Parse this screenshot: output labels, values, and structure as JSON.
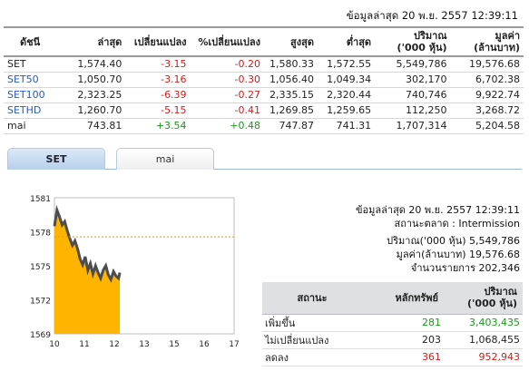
{
  "header": {
    "timestamp": "ข้อมูลล่าสุด 20 พ.ย. 2557 12:39:11"
  },
  "index_table": {
    "columns": [
      "ดัชนี",
      "ล่าสุด",
      "เปลี่ยนแปลง",
      "%เปลี่ยนแปลง",
      "สูงสุด",
      "ต่ำสุด",
      "ปริมาณ",
      "('000 หุ้น)",
      "มูลค่า",
      "(ล้านบาท)"
    ],
    "rows": [
      {
        "name": "SET",
        "last": "1,574.40",
        "change": "-3.15",
        "pct": "-0.20",
        "high": "1,580.33",
        "low": "1,572.55",
        "volume": "5,549,786",
        "value": "19,576.68"
      },
      {
        "name": "SET50",
        "last": "1,050.70",
        "change": "-3.16",
        "pct": "-0.30",
        "high": "1,056.40",
        "low": "1,049.34",
        "volume": "302,170",
        "value": "6,702.38"
      },
      {
        "name": "SET100",
        "last": "2,323.25",
        "change": "-6.39",
        "pct": "-0.27",
        "high": "2,335.15",
        "low": "2,320.44",
        "volume": "740,746",
        "value": "9,922.74"
      },
      {
        "name": "SETHD",
        "last": "1,260.70",
        "change": "-5.15",
        "pct": "-0.41",
        "high": "1,269.85",
        "low": "1,259.65",
        "volume": "112,250",
        "value": "3,268.72"
      },
      {
        "name": "mai",
        "last": "743.81",
        "change": "+3.54",
        "pct": "+0.48",
        "high": "747.87",
        "low": "741.31",
        "volume": "1,707,314",
        "value": "5,204.58"
      }
    ]
  },
  "tabs": [
    {
      "label": "SET",
      "active": true
    },
    {
      "label": "mai",
      "active": false
    }
  ],
  "chart_data": {
    "type": "area",
    "title": "",
    "xlabel": "",
    "ylabel": "",
    "x_ticks": [
      "10",
      "11",
      "12",
      "13",
      "15",
      "16",
      "17"
    ],
    "y_ticks": [
      "1581",
      "1578",
      "1575",
      "1572",
      "1569"
    ],
    "ylim": [
      1569,
      1581
    ],
    "xlim": [
      10,
      17
    ],
    "reference_line": 1577.55,
    "grid": false,
    "series": [
      {
        "x": [
          10.0,
          10.1,
          10.2,
          10.3,
          10.4,
          10.5,
          10.6,
          10.7,
          10.8,
          10.9,
          11.0,
          11.1,
          11.2,
          11.3,
          11.4,
          11.5,
          11.6,
          11.7,
          11.8,
          11.9,
          12.0,
          12.1,
          12.2,
          12.3,
          12.4,
          12.5,
          12.55
        ],
        "y": [
          1578.5,
          1579.9,
          1579.3,
          1578.6,
          1578.9,
          1578.1,
          1577.4,
          1576.8,
          1577.2,
          1576.5,
          1575.6,
          1575.1,
          1575.8,
          1574.6,
          1575.2,
          1574.3,
          1575.0,
          1574.4,
          1573.9,
          1574.6,
          1575.0,
          1574.2,
          1573.8,
          1574.5,
          1574.1,
          1573.9,
          1574.4
        ]
      }
    ],
    "colors": {
      "fill": "#ffb400",
      "line": "#4d4d4d",
      "ref": "#e0a000"
    }
  },
  "market_info": {
    "timestamp": "ข้อมูลล่าสุด 20 พ.ย. 2557 12:39:11",
    "status": "สถานะตลาด : Intermission",
    "volume": "ปริมาณ('000 หุ้น) 5,549,786",
    "value": "มูลค่า(ล้านบาท) 19,576.68",
    "trades": "จำนวนรายการ 202,346"
  },
  "stat_table": {
    "header_status": "สถานะ",
    "header_securities": "หลักทรัพย์",
    "header_volume_1": "ปริมาณ",
    "header_volume_2": "('000 หุ้น)",
    "rows": [
      {
        "label": "เพิ่มขึ้น",
        "count": "281",
        "volume": "3,403,435",
        "color": "#1a9a1a"
      },
      {
        "label": "ไม่เปลี่ยนแปลง",
        "count": "203",
        "volume": "1,068,455",
        "color": "#222222"
      },
      {
        "label": "ลดลง",
        "count": "361",
        "volume": "952,943",
        "color": "#d61b1b"
      }
    ]
  }
}
